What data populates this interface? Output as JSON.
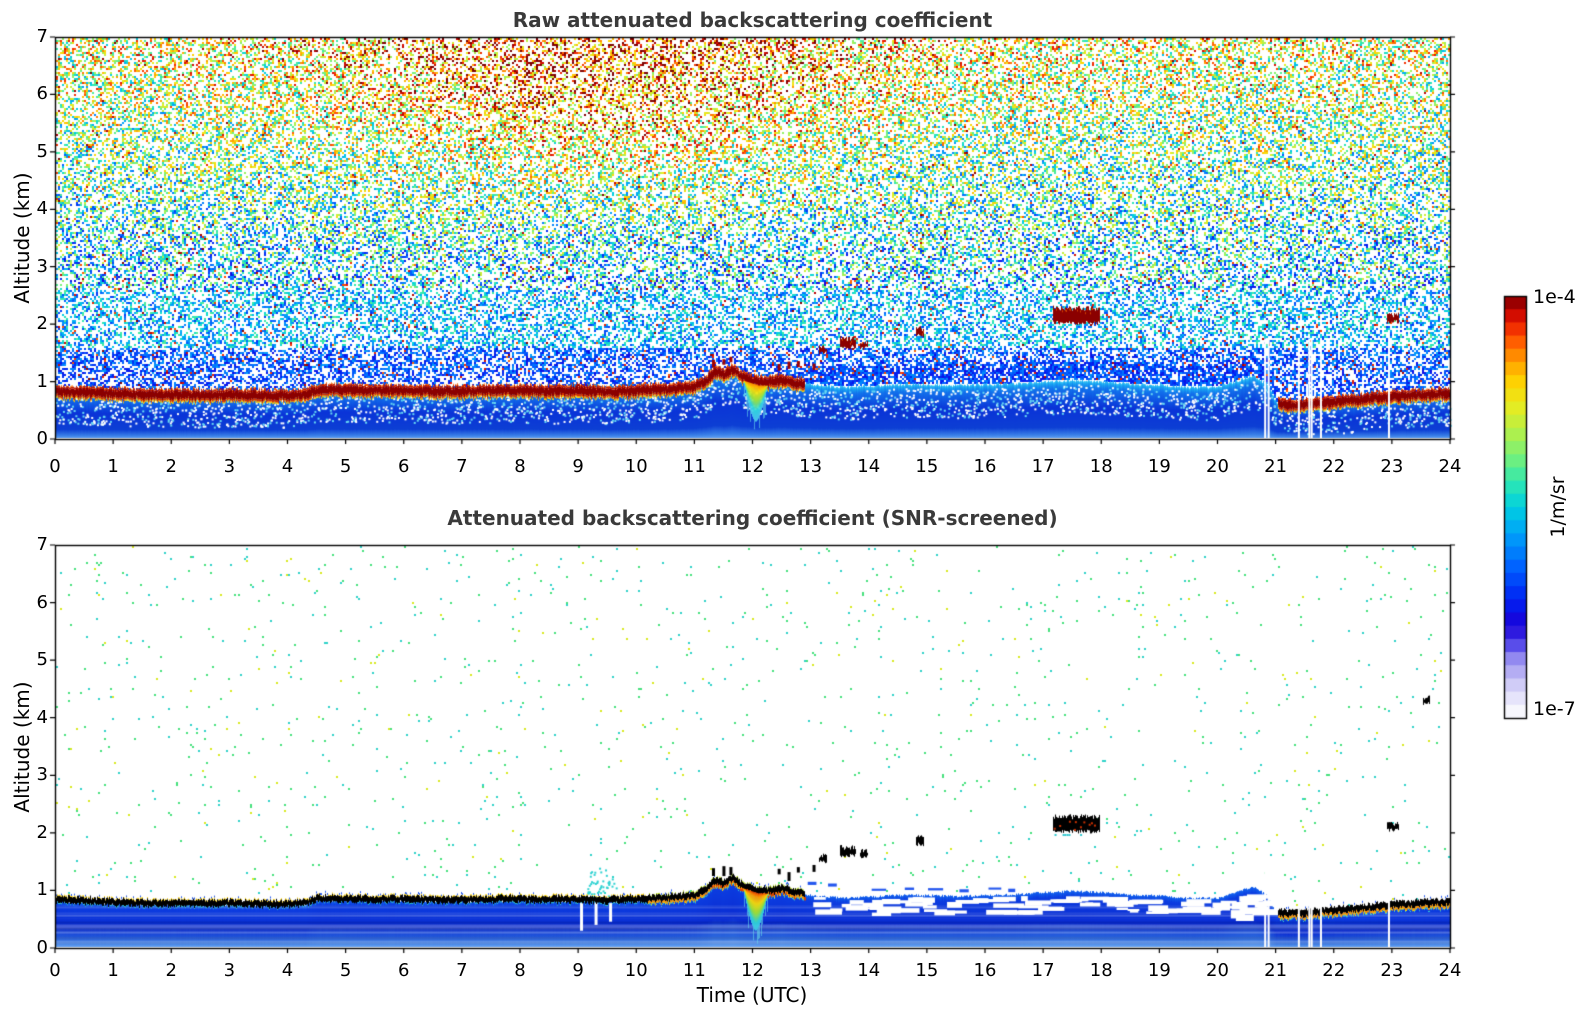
{
  "figure": {
    "background": "#ffffff",
    "title_color": "#3a3a3a",
    "axis_color": "#000000"
  },
  "axes": {
    "x_label": "Time (UTC)",
    "y_label": "Altitude (km)",
    "x_ticks": [
      "0",
      "1",
      "2",
      "3",
      "4",
      "5",
      "6",
      "7",
      "8",
      "9",
      "10",
      "11",
      "12",
      "13",
      "14",
      "15",
      "16",
      "17",
      "18",
      "19",
      "20",
      "21",
      "22",
      "23",
      "24"
    ],
    "y_ticks": [
      "0",
      "1",
      "2",
      "3",
      "4",
      "5",
      "6",
      "7"
    ]
  },
  "colorbar": {
    "max_label": "1e-4",
    "min_label": "1e-7",
    "unit_label": "1/m/sr",
    "scale": "log",
    "stops": [
      [
        0.0,
        "#ffffff"
      ],
      [
        0.03,
        "#f0effc"
      ],
      [
        0.06,
        "#dedcfa"
      ],
      [
        0.1,
        "#beb8f4"
      ],
      [
        0.14,
        "#938af0"
      ],
      [
        0.18,
        "#4a3ee8"
      ],
      [
        0.22,
        "#1a00d8"
      ],
      [
        0.28,
        "#0022f2"
      ],
      [
        0.36,
        "#0064ff"
      ],
      [
        0.44,
        "#00a4f8"
      ],
      [
        0.5,
        "#00d0e0"
      ],
      [
        0.56,
        "#30e8b0"
      ],
      [
        0.62,
        "#78f078"
      ],
      [
        0.68,
        "#b4f048"
      ],
      [
        0.74,
        "#e8ec20"
      ],
      [
        0.8,
        "#ffd000"
      ],
      [
        0.85,
        "#ff9800"
      ],
      [
        0.9,
        "#ff5000"
      ],
      [
        0.94,
        "#e81800"
      ],
      [
        0.97,
        "#b80000"
      ],
      [
        1.0,
        "#7c0000"
      ]
    ]
  },
  "chart_data": {
    "type": "heatmap",
    "x_unit": "hours UTC",
    "x_range": [
      0,
      24
    ],
    "y_unit": "km altitude",
    "y_range": [
      0,
      7
    ],
    "value_unit": "1/m/sr",
    "value_range": [
      "1e-7",
      "1e-4"
    ],
    "panels": [
      {
        "title": "Raw attenuated backscattering coefficient",
        "screened": false
      },
      {
        "title": "Attenuated backscattering coefficient (SNR-screened)",
        "screened": true
      }
    ],
    "series": {
      "aerosol_layer_top_km": {
        "hours": [
          0,
          0.5,
          1,
          1.5,
          2,
          2.5,
          3,
          3.5,
          4,
          4.3,
          4.5,
          5,
          5.5,
          6,
          6.5,
          7,
          7.5,
          8,
          8.5,
          9,
          9.5,
          10,
          10.5,
          11,
          11.2,
          11.35,
          11.5,
          11.65,
          11.8,
          11.95,
          12.1,
          12.3,
          12.5,
          12.7,
          12.9
        ],
        "km": [
          0.84,
          0.82,
          0.8,
          0.78,
          0.78,
          0.77,
          0.78,
          0.77,
          0.77,
          0.78,
          0.86,
          0.86,
          0.85,
          0.85,
          0.84,
          0.84,
          0.85,
          0.85,
          0.84,
          0.85,
          0.83,
          0.85,
          0.87,
          0.92,
          1.02,
          1.18,
          1.12,
          1.22,
          1.1,
          1.05,
          1.0,
          1.0,
          1.04,
          0.98,
          0.96
        ]
      },
      "afternoon_layer_top_km": {
        "hours": [
          13.0,
          13.3,
          13.6,
          14,
          14.5,
          15,
          15.5,
          16,
          16.5,
          17,
          17.5,
          18,
          18.5,
          19,
          19.5,
          20,
          20.3,
          20.6,
          20.85,
          20.95
        ],
        "km": [
          0.95,
          0.92,
          0.9,
          0.92,
          0.95,
          0.95,
          0.93,
          0.95,
          0.96,
          1.0,
          1.02,
          1.0,
          0.96,
          0.94,
          0.9,
          0.9,
          1.0,
          1.1,
          0.95,
          0.75
        ]
      },
      "evening_layer_top_km": {
        "hours": [
          21.0,
          21.2,
          21.4,
          21.7,
          22.0,
          22.3,
          22.6,
          23.0,
          23.4,
          23.7,
          24.0
        ],
        "km": [
          0.64,
          0.6,
          0.61,
          0.63,
          0.66,
          0.68,
          0.71,
          0.75,
          0.77,
          0.79,
          0.8
        ]
      },
      "clouds": [
        {
          "start_utc": 13.15,
          "end_utc": 13.28,
          "base_km": 1.5,
          "top_km": 1.6
        },
        {
          "start_utc": 13.52,
          "end_utc": 13.78,
          "base_km": 1.6,
          "top_km": 1.75
        },
        {
          "start_utc": 13.85,
          "end_utc": 13.97,
          "base_km": 1.58,
          "top_km": 1.68
        },
        {
          "start_utc": 14.82,
          "end_utc": 14.95,
          "base_km": 1.8,
          "top_km": 1.92
        },
        {
          "start_utc": 17.18,
          "end_utc": 17.97,
          "base_km": 2.02,
          "top_km": 2.28
        },
        {
          "start_utc": 22.93,
          "end_utc": 23.12,
          "base_km": 2.04,
          "top_km": 2.16
        },
        {
          "start_utc": 23.55,
          "end_utc": 23.65,
          "base_km": 4.25,
          "top_km": 4.35
        }
      ],
      "cloud_fragments_utc": [
        11.32,
        11.5,
        11.62,
        12.45,
        12.62,
        12.78,
        13.05
      ],
      "thin_layer_dashes": [
        [
          12.95,
          13.1,
          1.15
        ],
        [
          13.3,
          13.45,
          1.12
        ],
        [
          14.05,
          14.3,
          1.03
        ],
        [
          14.62,
          14.78,
          1.05
        ],
        [
          15.02,
          15.28,
          1.04
        ],
        [
          15.56,
          15.72,
          1.02
        ],
        [
          16.06,
          16.28,
          1.05
        ],
        [
          16.4,
          16.52,
          1.03
        ]
      ],
      "precipitation_virga": {
        "center_utc": 12.05,
        "half_width_hours": 0.22,
        "top_km": 1.0,
        "bottom_km": 0.3
      },
      "data_gaps_utc": [
        20.82,
        20.88,
        21.4,
        21.58,
        21.62,
        21.78,
        22.95
      ]
    }
  }
}
